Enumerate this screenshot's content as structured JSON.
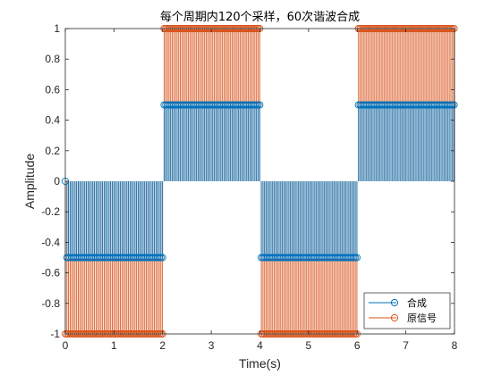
{
  "chart_data": {
    "type": "stem",
    "title": "每个周期内120个采样，60次谐波合成",
    "xlabel": "Time(s)",
    "ylabel": "Amplitude",
    "xlim": [
      0,
      8
    ],
    "ylim": [
      -1,
      1
    ],
    "xticks": [
      "0",
      "1",
      "2",
      "3",
      "4",
      "5",
      "6",
      "7",
      "8"
    ],
    "yticks": [
      "-1",
      "-0.8",
      "-0.6",
      "-0.4",
      "-0.2",
      "0",
      "0.2",
      "0.4",
      "0.6",
      "0.8",
      "1"
    ],
    "samples_per_period": 120,
    "period": 4,
    "sample_step": 0.0333,
    "legend_position": "bottom-right",
    "series": [
      {
        "name": "合成",
        "color": "#0072BD",
        "marker": "circle",
        "values_by_interval": [
          {
            "x_range": [
              0,
              2
            ],
            "y": -0.5
          },
          {
            "x_range": [
              2,
              4
            ],
            "y": 0.5
          },
          {
            "x_range": [
              4,
              6
            ],
            "y": -0.5
          },
          {
            "x_range": [
              6,
              8
            ],
            "y": 0.5
          }
        ],
        "values_at_transitions": [
          0,
          0,
          0,
          0,
          -0.5
        ],
        "transition_x": [
          0,
          2,
          4,
          6,
          8
        ]
      },
      {
        "name": "原信号",
        "color": "#D95319",
        "marker": "circle",
        "values_by_interval": [
          {
            "x_range": [
              0,
              2
            ],
            "y": -1
          },
          {
            "x_range": [
              2,
              4
            ],
            "y": 1
          },
          {
            "x_range": [
              4,
              6
            ],
            "y": -1
          },
          {
            "x_range": [
              6,
              8
            ],
            "y": 1
          }
        ],
        "values_at_transitions": [
          -1,
          1,
          -1,
          1,
          -1
        ],
        "transition_x": [
          0,
          2,
          4,
          6,
          8
        ]
      }
    ]
  }
}
